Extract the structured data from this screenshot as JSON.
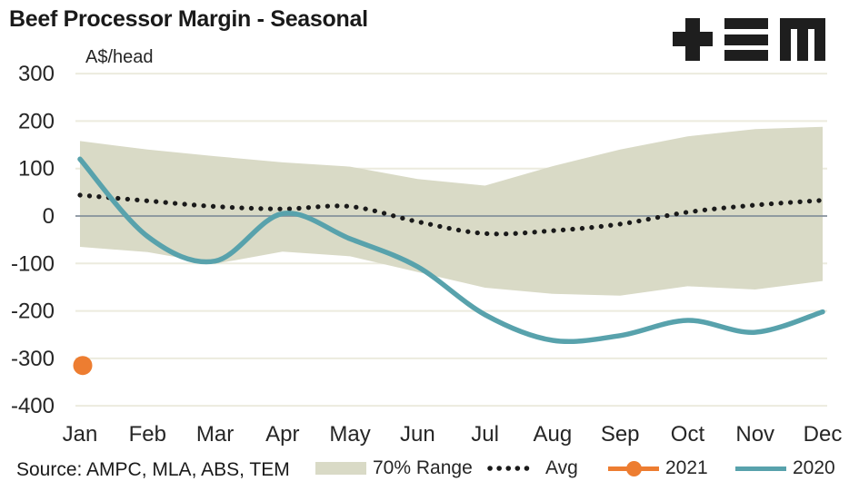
{
  "header": {
    "title": "Beef Processor Margin - Seasonal",
    "units_label": "A$/head",
    "logo": "TEM"
  },
  "footer": {
    "source_text": "Source: AMPC, MLA, ABS, TEM"
  },
  "legend": [
    {
      "label": "70% Range",
      "swatch": "band"
    },
    {
      "label": "Avg",
      "swatch": "dotted-line"
    },
    {
      "label": "2021",
      "swatch": "line-with-marker"
    },
    {
      "label": "2020",
      "swatch": "line"
    }
  ],
  "colors": {
    "band": "#d9dac6",
    "avg": "#1a1a1a",
    "y2021": "#ed7d31",
    "y2020": "#58a2ac",
    "gridline": "#ecebde",
    "zero_axis": "#84919b",
    "text": "#262626",
    "logo": "#1e1e1e"
  },
  "chart_data": {
    "type": "line",
    "title": "Beef Processor Margin - Seasonal",
    "ylabel": "A$/head",
    "xlabel": "",
    "categories": [
      "Jan",
      "Feb",
      "Mar",
      "Apr",
      "May",
      "Jun",
      "Jul",
      "Aug",
      "Sep",
      "Oct",
      "Nov",
      "Dec"
    ],
    "ylim": [
      -400,
      300
    ],
    "y_ticks": [
      300,
      200,
      100,
      0,
      -100,
      -200,
      -300,
      -400
    ],
    "grid": "horizontal",
    "legend_position": "bottom",
    "series": [
      {
        "name": "70% Range",
        "type": "area-band",
        "color": "#d9dac6",
        "upper": [
          158,
          140,
          126,
          113,
          104,
          78,
          64,
          105,
          140,
          168,
          183,
          188
        ],
        "lower": [
          -65,
          -76,
          -101,
          -75,
          -85,
          -118,
          -151,
          -164,
          -168,
          -148,
          -155,
          -137
        ]
      },
      {
        "name": "Avg",
        "type": "line",
        "line_style": "dotted",
        "color": "#1a1a1a",
        "values": [
          44,
          32,
          20,
          15,
          20,
          -12,
          -37,
          -31,
          -17,
          8,
          23,
          33
        ]
      },
      {
        "name": "2021",
        "type": "scatter",
        "color": "#ed7d31",
        "values": [
          -315,
          null,
          null,
          null,
          null,
          null,
          null,
          null,
          null,
          null,
          null,
          null
        ]
      },
      {
        "name": "2020",
        "type": "line",
        "line_style": "solid",
        "color": "#58a2ac",
        "values": [
          120,
          -43,
          -95,
          5,
          -48,
          -107,
          -208,
          -262,
          -252,
          -220,
          -245,
          -202
        ]
      }
    ]
  }
}
